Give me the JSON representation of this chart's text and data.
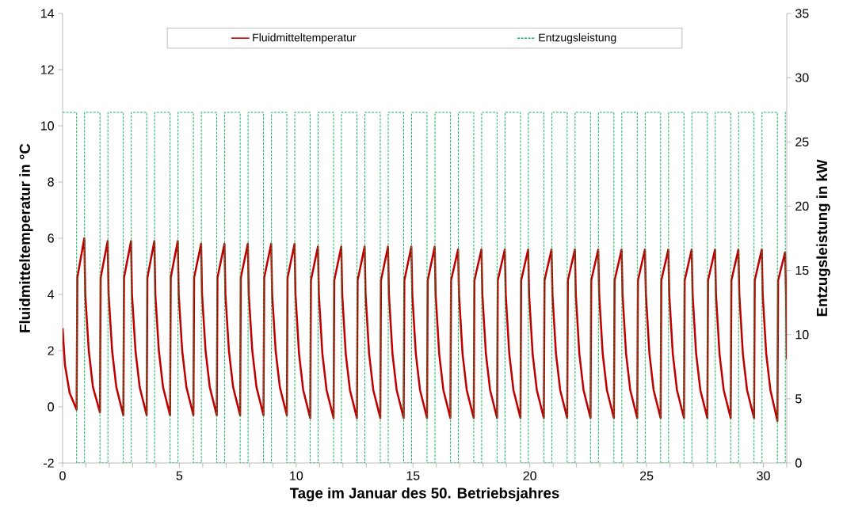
{
  "chart_data": {
    "type": "line",
    "xlabel": "Tage im Januar des 50. Betriebsjahres",
    "ylabel": "Fluidmitteltemperatur in °C",
    "y2label": "Entzugsleistung in kW",
    "xlim": [
      0,
      31
    ],
    "ylim": [
      -2,
      14
    ],
    "y2lim": [
      0,
      35
    ],
    "xticks": [
      0,
      {
        "value": 1,
        "label": null
      },
      {
        "value": 2,
        "label": null
      },
      {
        "value": 3,
        "label": null
      },
      {
        "value": 4,
        "label": null
      },
      5,
      {
        "value": 6,
        "label": null
      },
      {
        "value": 7,
        "label": null
      },
      {
        "value": 8,
        "label": null
      },
      {
        "value": 9,
        "label": null
      },
      10,
      {
        "value": 11,
        "label": null
      },
      {
        "value": 12,
        "label": null
      },
      {
        "value": 13,
        "label": null
      },
      {
        "value": 14,
        "label": null
      },
      15,
      {
        "value": 16,
        "label": null
      },
      {
        "value": 17,
        "label": null
      },
      {
        "value": 18,
        "label": null
      },
      {
        "value": 19,
        "label": null
      },
      20,
      {
        "value": 21,
        "label": null
      },
      {
        "value": 22,
        "label": null
      },
      {
        "value": 23,
        "label": null
      },
      {
        "value": 24,
        "label": null
      },
      25,
      {
        "value": 26,
        "label": null
      },
      {
        "value": 27,
        "label": null
      },
      {
        "value": 28,
        "label": null
      },
      {
        "value": 29,
        "label": null
      },
      30,
      {
        "value": 31,
        "label": null
      }
    ],
    "yticks": [
      -2,
      0,
      2,
      4,
      6,
      8,
      10,
      12,
      14
    ],
    "y2ticks": [
      0,
      5,
      10,
      15,
      20,
      25,
      30,
      35
    ],
    "legend": "top",
    "grid": false,
    "marker": "none",
    "series": [
      {
        "name": "Fluidmitteltemperatur",
        "type": "line",
        "color": "#c00000",
        "line_style": "solid",
        "x": [
          0,
          0.1,
          0.3,
          0.6,
          0.63,
          0.93,
          0.97,
          1.12,
          1.3,
          1.6,
          1.63,
          1.93,
          1.97,
          2.12,
          2.3,
          2.6,
          2.63,
          2.93,
          2.97,
          3.12,
          3.3,
          3.6,
          3.63,
          3.93,
          3.97,
          4.12,
          4.3,
          4.6,
          4.63,
          4.93,
          4.97,
          5.12,
          5.3,
          5.6,
          5.63,
          5.93,
          5.97,
          6.12,
          6.3,
          6.6,
          6.63,
          6.93,
          6.97,
          7.12,
          7.3,
          7.6,
          7.63,
          7.93,
          7.97,
          8.12,
          8.3,
          8.6,
          8.63,
          8.93,
          8.97,
          9.12,
          9.3,
          9.6,
          9.63,
          9.93,
          9.97,
          10.12,
          10.3,
          10.6,
          10.63,
          10.93,
          10.97,
          11.12,
          11.3,
          11.6,
          11.63,
          11.93,
          11.97,
          12.12,
          12.3,
          12.6,
          12.63,
          12.93,
          12.97,
          13.12,
          13.3,
          13.6,
          13.63,
          13.93,
          13.97,
          14.12,
          14.3,
          14.6,
          14.63,
          14.93,
          14.97,
          15.12,
          15.3,
          15.6,
          15.63,
          15.93,
          15.97,
          16.12,
          16.3,
          16.6,
          16.63,
          16.93,
          16.97,
          17.12,
          17.3,
          17.6,
          17.63,
          17.93,
          17.97,
          18.12,
          18.3,
          18.6,
          18.63,
          18.93,
          18.97,
          19.12,
          19.3,
          19.6,
          19.63,
          19.93,
          19.97,
          20.12,
          20.3,
          20.6,
          20.63,
          20.93,
          20.97,
          21.12,
          21.3,
          21.6,
          21.63,
          21.93,
          21.97,
          22.12,
          22.3,
          22.6,
          22.63,
          22.93,
          22.97,
          23.12,
          23.3,
          23.6,
          23.63,
          23.93,
          23.97,
          24.12,
          24.3,
          24.6,
          24.63,
          24.93,
          24.97,
          25.12,
          25.3,
          25.6,
          25.63,
          25.93,
          25.97,
          26.12,
          26.3,
          26.6,
          26.63,
          26.93,
          26.97,
          27.12,
          27.3,
          27.6,
          27.63,
          27.93,
          27.97,
          28.12,
          28.3,
          28.6,
          28.63,
          28.93,
          28.97,
          29.12,
          29.3,
          29.6,
          29.63,
          29.93,
          29.97,
          30.12,
          30.3,
          30.6,
          30.63,
          30.93,
          30.97,
          31
        ],
        "values": [
          2.8,
          1.5,
          0.5,
          -0.1,
          4.6,
          6.0,
          4.0,
          2.0,
          0.7,
          -0.2,
          4.6,
          5.9,
          4.0,
          2.0,
          0.7,
          -0.3,
          4.6,
          5.9,
          4.0,
          2.0,
          0.7,
          -0.3,
          4.6,
          5.9,
          4.0,
          2.0,
          0.7,
          -0.3,
          4.6,
          5.9,
          4.0,
          2.0,
          0.7,
          -0.3,
          4.6,
          5.8,
          4.0,
          2.0,
          0.7,
          -0.3,
          4.6,
          5.8,
          4.0,
          2.0,
          0.7,
          -0.3,
          4.6,
          5.8,
          4.0,
          2.0,
          0.7,
          -0.3,
          4.6,
          5.8,
          4.0,
          2.0,
          0.7,
          -0.3,
          4.6,
          5.8,
          4.0,
          1.9,
          0.6,
          -0.4,
          4.5,
          5.7,
          4.0,
          1.9,
          0.6,
          -0.4,
          4.5,
          5.7,
          4.0,
          1.9,
          0.6,
          -0.4,
          4.5,
          5.7,
          4.0,
          1.9,
          0.6,
          -0.4,
          4.5,
          5.7,
          4.0,
          1.9,
          0.6,
          -0.4,
          4.5,
          5.7,
          4.0,
          1.9,
          0.6,
          -0.4,
          4.5,
          5.7,
          4.0,
          1.9,
          0.6,
          -0.4,
          4.5,
          5.6,
          4.0,
          1.9,
          0.6,
          -0.4,
          4.5,
          5.6,
          4.0,
          1.9,
          0.6,
          -0.4,
          4.5,
          5.6,
          4.0,
          1.9,
          0.6,
          -0.4,
          4.5,
          5.6,
          4.0,
          1.9,
          0.6,
          -0.4,
          4.5,
          5.6,
          4.0,
          1.9,
          0.6,
          -0.4,
          4.5,
          5.6,
          4.0,
          1.9,
          0.6,
          -0.4,
          4.5,
          5.6,
          4.0,
          1.9,
          0.6,
          -0.4,
          4.5,
          5.6,
          4.0,
          1.9,
          0.6,
          -0.4,
          4.5,
          5.6,
          4.0,
          1.9,
          0.6,
          -0.4,
          4.5,
          5.6,
          4.0,
          1.9,
          0.6,
          -0.4,
          4.5,
          5.6,
          4.0,
          1.9,
          0.6,
          -0.4,
          4.5,
          5.6,
          4.0,
          1.9,
          0.6,
          -0.4,
          4.5,
          5.6,
          4.0,
          1.9,
          0.6,
          -0.4,
          4.5,
          5.6,
          4.0,
          1.9,
          0.6,
          -0.5,
          4.5,
          5.5,
          4.0,
          1.7
        ]
      },
      {
        "name": "Entzugsleistung",
        "type": "step",
        "axis": "y2",
        "color": "#00b050",
        "line_style": "dashed",
        "x": [
          0,
          0.6,
          0.94,
          1.6,
          1.94,
          2.6,
          2.94,
          3.6,
          3.94,
          4.6,
          4.94,
          5.6,
          5.94,
          6.6,
          6.94,
          7.6,
          7.94,
          8.6,
          8.94,
          9.6,
          9.94,
          10.6,
          10.94,
          11.6,
          11.94,
          12.6,
          12.94,
          13.6,
          13.94,
          14.6,
          14.94,
          15.6,
          15.94,
          16.6,
          16.94,
          17.6,
          17.94,
          18.6,
          18.94,
          19.6,
          19.94,
          20.6,
          20.94,
          21.6,
          21.94,
          22.6,
          22.94,
          23.6,
          23.94,
          24.6,
          24.94,
          25.6,
          25.94,
          26.6,
          26.94,
          27.6,
          27.94,
          28.6,
          28.94,
          29.6,
          29.94,
          30.6,
          30.94,
          31
        ],
        "values": [
          27.3,
          0,
          27.3,
          0,
          27.3,
          0,
          27.3,
          0,
          27.3,
          0,
          27.3,
          0,
          27.3,
          0,
          27.3,
          0,
          27.3,
          0,
          27.3,
          0,
          27.3,
          0,
          27.3,
          0,
          27.3,
          0,
          27.3,
          0,
          27.3,
          0,
          27.3,
          0,
          27.3,
          0,
          27.3,
          0,
          27.3,
          0,
          27.3,
          0,
          27.3,
          0,
          27.3,
          0,
          27.3,
          0,
          27.3,
          0,
          27.3,
          0,
          27.3,
          0,
          27.3,
          0,
          27.3,
          0,
          27.3,
          0,
          27.3,
          0,
          27.3,
          0,
          27.3,
          27.3
        ]
      }
    ]
  }
}
